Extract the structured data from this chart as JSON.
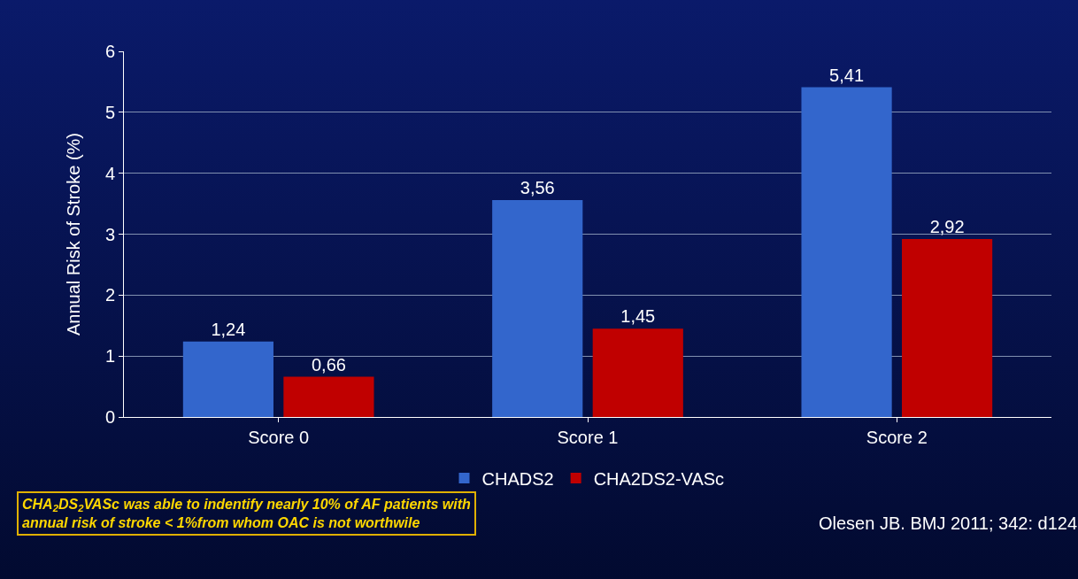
{
  "chart_data": {
    "type": "bar",
    "ylabel": "Annual Risk of Stroke (%)",
    "categories": [
      "Score 0",
      "Score 1",
      "Score 2"
    ],
    "series": [
      {
        "name": "CHADS2",
        "color": "#3366cc",
        "values": [
          1.24,
          3.56,
          5.41
        ],
        "value_labels": [
          "1,24",
          "3,56",
          "5,41"
        ]
      },
      {
        "name": "CHA2DS2-VASc",
        "color": "#c00000",
        "values": [
          0.66,
          1.45,
          2.92
        ],
        "value_labels": [
          "0,66",
          "1,45",
          "2,92"
        ]
      }
    ],
    "ylim": [
      0,
      6
    ],
    "yticks": [
      0,
      1,
      2,
      3,
      4,
      5,
      6
    ],
    "grid": "y",
    "legend": "bottom",
    "annotations": [
      "CHA$_{2}$DS$_{2}$VASc was able to indentify nearly 10% of AF patients with annual risk of stroke < 1%from whom OAC is not worthwile",
      "Olesen JB. BMJ 2011; 342: d124"
    ]
  }
}
